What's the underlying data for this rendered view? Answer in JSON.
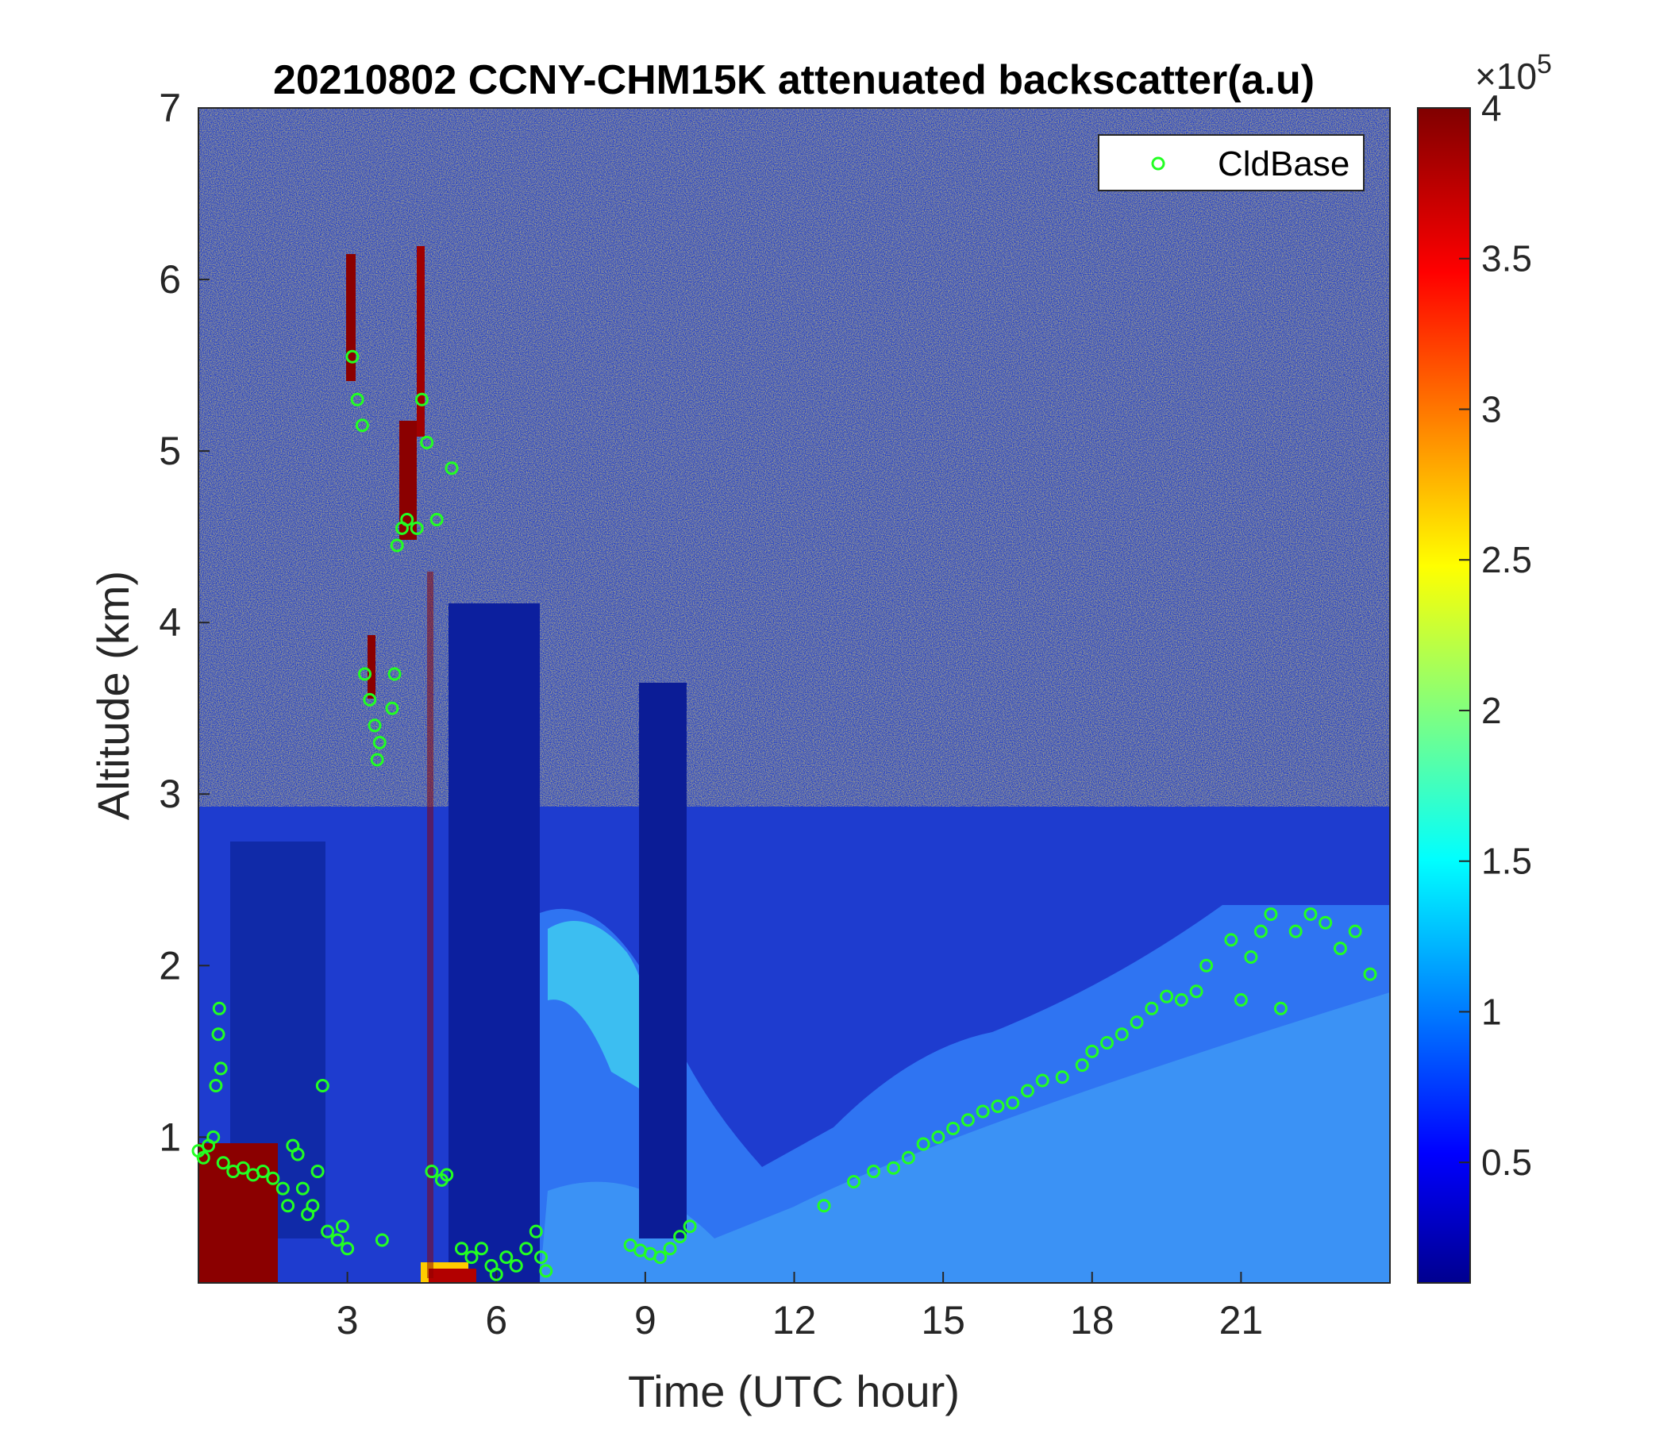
{
  "chart_data": {
    "type": "heatmap",
    "title": "20210802 CCNY-CHM15K attenuated backscatter(a.u)",
    "xlabel": "Time (UTC hour)",
    "ylabel": "Altitude (km)",
    "xlim": [
      0,
      24
    ],
    "ylim": [
      0.15,
      7
    ],
    "x_ticks": [
      3,
      6,
      9,
      12,
      15,
      18,
      21
    ],
    "y_ticks": [
      1,
      2,
      3,
      4,
      5,
      6,
      7
    ],
    "colorbar": {
      "colormap": "jet",
      "range": [
        0.1,
        4
      ],
      "ticks": [
        "0.5",
        "1",
        "1.5",
        "2",
        "2.5",
        "3",
        "3.5",
        "4"
      ],
      "tick_values": [
        0.5,
        1,
        1.5,
        2,
        2.5,
        3,
        3.5,
        4
      ],
      "multiplier_label": "×10",
      "multiplier_exp": "5"
    },
    "legend": {
      "placement": "top-right",
      "entries": [
        "CldBase"
      ],
      "marker": "circle",
      "color": "#22ff22"
    },
    "series": [
      {
        "name": "CldBase",
        "points": [
          [
            0.0,
            0.92
          ],
          [
            0.1,
            0.88
          ],
          [
            0.2,
            0.95
          ],
          [
            0.3,
            1.0
          ],
          [
            0.35,
            1.3
          ],
          [
            0.4,
            1.6
          ],
          [
            0.42,
            1.75
          ],
          [
            0.45,
            1.4
          ],
          [
            0.5,
            0.85
          ],
          [
            0.7,
            0.8
          ],
          [
            0.9,
            0.82
          ],
          [
            1.1,
            0.78
          ],
          [
            1.3,
            0.8
          ],
          [
            1.5,
            0.76
          ],
          [
            1.7,
            0.7
          ],
          [
            1.8,
            0.6
          ],
          [
            1.9,
            0.95
          ],
          [
            2.0,
            0.9
          ],
          [
            2.1,
            0.7
          ],
          [
            2.2,
            0.55
          ],
          [
            2.3,
            0.6
          ],
          [
            2.4,
            0.8
          ],
          [
            2.5,
            1.3
          ],
          [
            2.6,
            0.45
          ],
          [
            2.8,
            0.4
          ],
          [
            2.9,
            0.48
          ],
          [
            3.0,
            0.35
          ],
          [
            3.1,
            5.55
          ],
          [
            3.2,
            5.3
          ],
          [
            3.3,
            5.15
          ],
          [
            3.35,
            3.7
          ],
          [
            3.45,
            3.55
          ],
          [
            3.55,
            3.4
          ],
          [
            3.6,
            3.2
          ],
          [
            3.65,
            3.3
          ],
          [
            3.7,
            0.4
          ],
          [
            3.9,
            3.5
          ],
          [
            3.95,
            3.7
          ],
          [
            4.0,
            4.45
          ],
          [
            4.1,
            4.55
          ],
          [
            4.2,
            4.6
          ],
          [
            4.4,
            4.55
          ],
          [
            4.5,
            5.3
          ],
          [
            4.6,
            5.05
          ],
          [
            4.7,
            0.8
          ],
          [
            4.8,
            4.6
          ],
          [
            4.9,
            0.75
          ],
          [
            5.0,
            0.78
          ],
          [
            5.1,
            4.9
          ],
          [
            5.3,
            0.35
          ],
          [
            5.5,
            0.3
          ],
          [
            5.7,
            0.35
          ],
          [
            5.9,
            0.25
          ],
          [
            6.0,
            0.2
          ],
          [
            6.2,
            0.3
          ],
          [
            6.4,
            0.25
          ],
          [
            6.6,
            0.35
          ],
          [
            6.8,
            0.45
          ],
          [
            6.9,
            0.3
          ],
          [
            7.0,
            0.22
          ],
          [
            8.7,
            0.37
          ],
          [
            8.9,
            0.34
          ],
          [
            9.1,
            0.32
          ],
          [
            9.3,
            0.3
          ],
          [
            9.5,
            0.35
          ],
          [
            9.7,
            0.42
          ],
          [
            9.9,
            0.48
          ],
          [
            12.6,
            0.6
          ],
          [
            13.2,
            0.74
          ],
          [
            13.6,
            0.8
          ],
          [
            14.0,
            0.82
          ],
          [
            14.3,
            0.88
          ],
          [
            14.6,
            0.96
          ],
          [
            14.9,
            1.0
          ],
          [
            15.2,
            1.05
          ],
          [
            15.5,
            1.1
          ],
          [
            15.8,
            1.15
          ],
          [
            16.1,
            1.18
          ],
          [
            16.4,
            1.2
          ],
          [
            16.7,
            1.27
          ],
          [
            17.0,
            1.33
          ],
          [
            17.4,
            1.35
          ],
          [
            17.8,
            1.42
          ],
          [
            18.0,
            1.5
          ],
          [
            18.3,
            1.55
          ],
          [
            18.6,
            1.6
          ],
          [
            18.9,
            1.67
          ],
          [
            19.2,
            1.75
          ],
          [
            19.5,
            1.82
          ],
          [
            19.8,
            1.8
          ],
          [
            20.1,
            1.85
          ],
          [
            20.3,
            2.0
          ],
          [
            20.8,
            2.15
          ],
          [
            21.0,
            1.8
          ],
          [
            21.2,
            2.05
          ],
          [
            21.4,
            2.2
          ],
          [
            21.6,
            2.3
          ],
          [
            21.8,
            1.75
          ],
          [
            22.1,
            2.2
          ],
          [
            22.4,
            2.3
          ],
          [
            22.7,
            2.25
          ],
          [
            23.0,
            2.1
          ],
          [
            23.3,
            2.2
          ],
          [
            23.6,
            1.95
          ]
        ]
      }
    ],
    "grid": false
  }
}
